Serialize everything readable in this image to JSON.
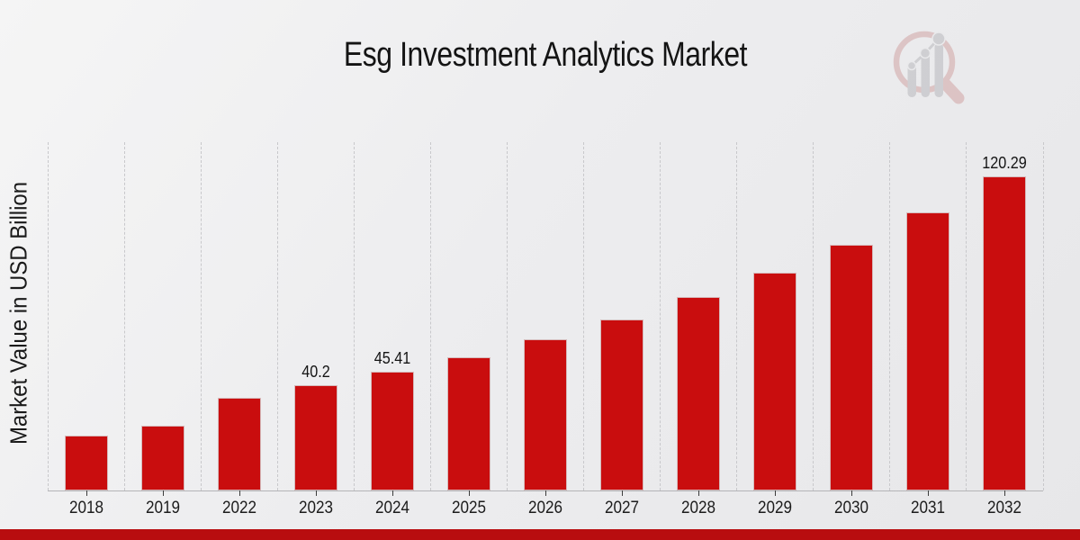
{
  "header": {
    "title": "Esg Investment Analytics Market"
  },
  "chart_data": {
    "type": "bar",
    "title": "Esg Investment Analytics Market",
    "xlabel": "",
    "ylabel": "Market Value in USD Billion",
    "categories": [
      "2018",
      "2019",
      "2022",
      "2023",
      "2024",
      "2025",
      "2026",
      "2027",
      "2028",
      "2029",
      "2030",
      "2031",
      "2032"
    ],
    "values": [
      20.9,
      25.0,
      35.6,
      40.2,
      45.41,
      51.1,
      57.9,
      65.4,
      74.0,
      83.5,
      94.2,
      106.6,
      120.29
    ],
    "bar_labels": [
      "",
      "",
      "",
      "40.2",
      "45.41",
      "",
      "",
      "",
      "",
      "",
      "",
      "",
      "120.29"
    ],
    "ylim": [
      0,
      133.5
    ],
    "y_axis_ticks_visible": false,
    "grid": "vertical-dashed",
    "legend": "none",
    "bar_color": "#c90d0e",
    "gridline_color": "#c8c8cb",
    "background": "light-gray-gradient"
  },
  "branding": {
    "logo_icon": "magnifier-bar-chart-logo",
    "accent_bar_color": "#b80d0f",
    "logo_ring_color": "#cf9e9e",
    "logo_bars_color": "#b4b4b8"
  }
}
